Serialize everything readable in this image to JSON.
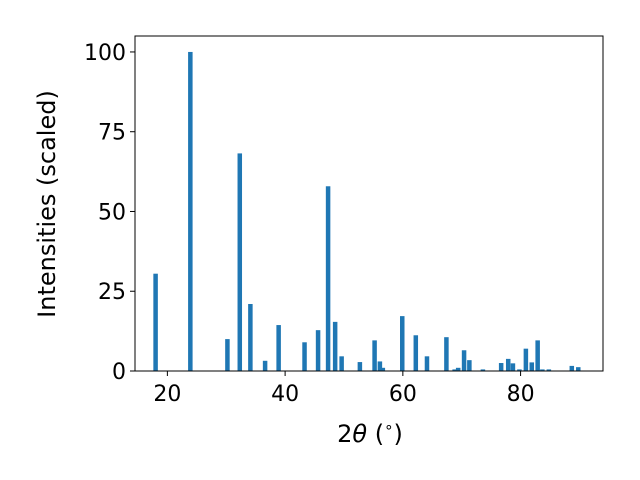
{
  "chart_data": {
    "type": "bar",
    "xlabel_prefix": "2",
    "xlabel_symbol": "θ",
    "xlabel_suffix": " (",
    "xlabel_degree": "∘",
    "xlabel_close": ")",
    "ylabel": "Intensities (scaled)",
    "xlim": [
      14.5,
      94.0
    ],
    "ylim": [
      0,
      105
    ],
    "xticks": [
      20,
      40,
      60,
      80
    ],
    "yticks": [
      0,
      25,
      50,
      75,
      100
    ],
    "bar_color": "#1f77b4",
    "x": [
      18.0,
      23.9,
      30.2,
      32.3,
      34.1,
      36.6,
      38.9,
      43.3,
      45.6,
      47.3,
      48.5,
      49.6,
      52.7,
      55.2,
      56.1,
      56.6,
      59.9,
      62.2,
      64.1,
      67.4,
      68.8,
      69.4,
      70.4,
      71.3,
      73.6,
      76.7,
      77.9,
      78.7,
      79.8,
      80.9,
      81.9,
      82.9,
      83.7,
      84.8,
      88.7,
      89.8
    ],
    "values": [
      30.5,
      100.0,
      10.0,
      68.2,
      21.0,
      3.2,
      14.4,
      9.0,
      12.8,
      57.9,
      15.4,
      4.6,
      2.8,
      9.6,
      3.0,
      1.0,
      17.2,
      11.2,
      4.6,
      10.6,
      0.5,
      1.0,
      6.5,
      3.4,
      0.5,
      2.5,
      3.8,
      2.4,
      0.5,
      7.0,
      2.7,
      9.6,
      0.5,
      0.5,
      1.6,
      1.2
    ]
  }
}
